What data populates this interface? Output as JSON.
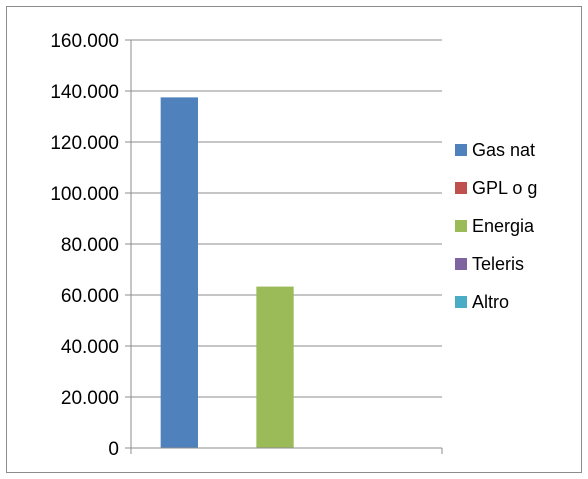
{
  "chart_data": {
    "type": "bar",
    "categories": [
      ""
    ],
    "series": [
      {
        "name": "Gas nat",
        "color": "#4f81bd",
        "values": [
          137500
        ]
      },
      {
        "name": "GPL o g",
        "color": "#c0504d",
        "values": [
          0
        ]
      },
      {
        "name": "Energia",
        "color": "#9bbb59",
        "values": [
          63300
        ]
      },
      {
        "name": "Teleris",
        "color": "#8064a2",
        "values": [
          0
        ]
      },
      {
        "name": "Altro",
        "color": "#4bacc6",
        "values": [
          0
        ]
      }
    ],
    "ylim": [
      0,
      160000
    ],
    "yticks": [
      0,
      20000,
      40000,
      60000,
      80000,
      100000,
      120000,
      140000,
      160000
    ],
    "ytick_labels": [
      "0",
      "20.000",
      "40.000",
      "60.000",
      "80.000",
      "100.000",
      "120.000",
      "140.000",
      "160.000"
    ],
    "grid": true,
    "legend_position": "right"
  }
}
